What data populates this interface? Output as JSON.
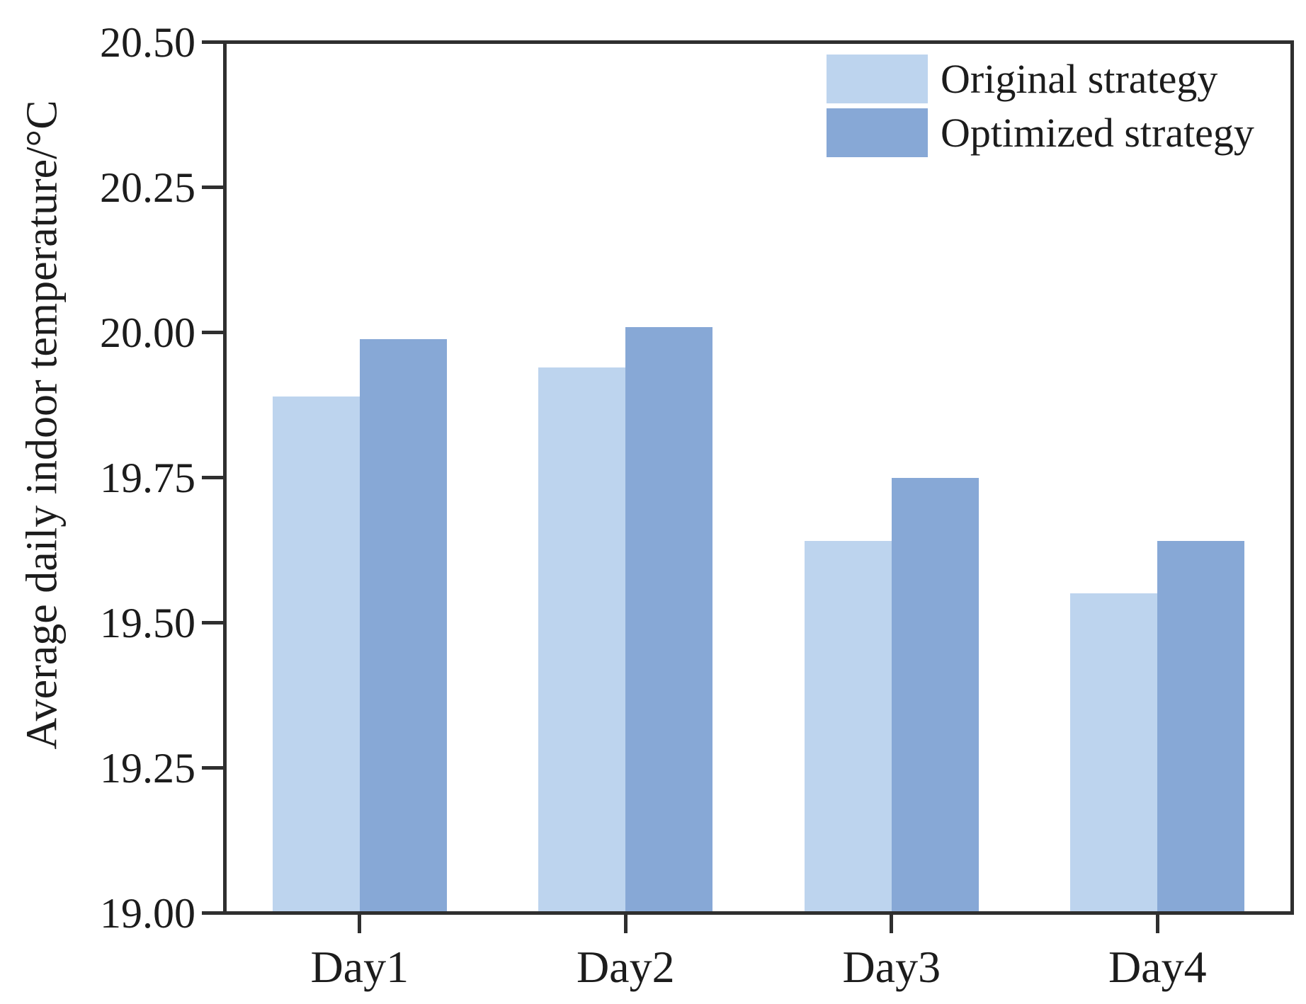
{
  "chart_data": {
    "type": "bar",
    "title": "",
    "xlabel": "",
    "ylabel": "Average daily indoor temperature/°C",
    "categories": [
      "Day1",
      "Day2",
      "Day3",
      "Day4"
    ],
    "series": [
      {
        "name": "Original strategy",
        "color": "#bdd4ee",
        "values": [
          19.89,
          19.94,
          19.64,
          19.55
        ]
      },
      {
        "name": "Optimized strategy",
        "color": "#87a8d6",
        "values": [
          19.99,
          20.01,
          19.75,
          19.64
        ]
      }
    ],
    "ylim": [
      19.0,
      20.5
    ],
    "ytick_step": 0.25,
    "yticks": [
      "20.50",
      "20.25",
      "20.00",
      "19.75",
      "19.50",
      "19.25",
      "19.00"
    ],
    "grid": false,
    "legend_position": "top-right",
    "axis_color": "#2f2f2f",
    "text_color": "#1c1c1c",
    "background_color": "#ffffff"
  }
}
